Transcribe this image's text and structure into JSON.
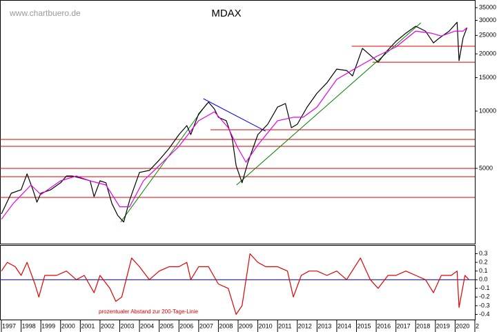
{
  "chart_data": [
    {
      "type": "line",
      "title": "MDAX",
      "watermark": "www.chartbuero.de",
      "log_scale": true,
      "xlim": [
        1996.93,
        2021.0
      ],
      "ylim": [
        2010,
        38400
      ],
      "yticks": [
        5000,
        10000,
        15000,
        20000,
        25000,
        30000,
        35000
      ],
      "series": [
        {
          "color": "#000000",
          "x": [
            1997.0,
            1997.5,
            1998.0,
            1998.3,
            1998.6,
            1998.8,
            1999.0,
            1999.5,
            2000.0,
            2000.3,
            2000.6,
            2001.0,
            2001.5,
            2001.7,
            2002.0,
            2002.3,
            2002.6,
            2002.9,
            2003.2,
            2003.5,
            2004.0,
            2004.5,
            2005.0,
            2005.5,
            2006.0,
            2006.4,
            2006.6,
            2007.0,
            2007.5,
            2007.8,
            2008.0,
            2008.4,
            2008.7,
            2008.9,
            2009.2,
            2009.5,
            2010.0,
            2010.5,
            2011.0,
            2011.4,
            2011.7,
            2012.0,
            2012.5,
            2013.0,
            2013.5,
            2014.0,
            2014.5,
            2014.8,
            2015.3,
            2015.7,
            2016.1,
            2016.5,
            2017.0,
            2017.5,
            2018.0,
            2018.5,
            2018.9,
            2019.2,
            2019.7,
            2020.1,
            2020.2,
            2020.4,
            2020.6
          ],
          "values": [
            2880,
            3700,
            3860,
            4680,
            3860,
            3320,
            3700,
            3860,
            4200,
            4560,
            4560,
            4450,
            4300,
            3550,
            4300,
            4200,
            3270,
            2830,
            2610,
            3400,
            4760,
            4880,
            5530,
            6370,
            7530,
            8390,
            7530,
            9670,
            11150,
            10250,
            9280,
            8900,
            7220,
            5170,
            4200,
            5390,
            7530,
            8530,
            10510,
            10960,
            8180,
            8530,
            10510,
            12430,
            14080,
            16640,
            16360,
            15310,
            21370,
            19660,
            18090,
            20490,
            23250,
            25700,
            27960,
            26350,
            22860,
            24240,
            26350,
            29350,
            18400,
            24240,
            27500
          ]
        },
        {
          "color": "#e000e0",
          "x": [
            1997.0,
            1997.6,
            1998.5,
            1999.0,
            2000.0,
            2000.8,
            2001.5,
            2002.3,
            2003.0,
            2003.5,
            2004.2,
            2005.0,
            2006.0,
            2007.0,
            2007.8,
            2008.5,
            2009.0,
            2009.4,
            2010.0,
            2011.0,
            2011.8,
            2012.3,
            2013.0,
            2014.0,
            2015.0,
            2016.0,
            2017.0,
            2018.0,
            2018.8,
            2019.3,
            2020.0,
            2020.4,
            2020.6
          ],
          "values": [
            2700,
            3270,
            4090,
            3640,
            4300,
            4560,
            4300,
            4090,
            3140,
            3140,
            4300,
            5170,
            6530,
            8900,
            9920,
            8180,
            6370,
            5390,
            6640,
            8900,
            9280,
            9280,
            10510,
            14690,
            16920,
            19350,
            21750,
            26350,
            25700,
            24830,
            26350,
            26350,
            27500
          ]
        }
      ],
      "trendlines": [
        {
          "color": "#008000",
          "x": [
            2003.05,
            2007.42
          ],
          "values": [
            2610,
            10960
          ]
        },
        {
          "color": "#008000",
          "x": [
            2008.92,
            2018.26
          ],
          "values": [
            4090,
            29130
          ]
        },
        {
          "color": "#0000ff",
          "x": [
            2007.24,
            2010.39
          ],
          "values": [
            11620,
            7850
          ]
        }
      ],
      "level_color": "#e00000",
      "levels": [
        {
          "value": 21930,
          "from": 2014.76
        },
        {
          "value": 18090,
          "from": 2015.81
        },
        {
          "value": 7980,
          "from": 2007.6
        },
        {
          "value": 7100
        },
        {
          "value": 6530
        },
        {
          "value": 5000
        },
        {
          "value": 4520
        },
        {
          "value": 3520
        }
      ]
    },
    {
      "type": "line",
      "label": "prozentualer Abstand zur 200-Tage-Linie",
      "xlim": [
        1996.93,
        2021.0
      ],
      "ylim": [
        -0.46,
        0.4
      ],
      "yticks": [
        0.3,
        0.2,
        0.1,
        {
          "value": 0,
          "label": "0.0"
        },
        -0.1,
        -0.2,
        -0.3,
        -0.4
      ],
      "xticks": [
        1997,
        1998,
        1999,
        2000,
        2001,
        2002,
        2003,
        2004,
        2005,
        2006,
        2007,
        2008,
        2009,
        2010,
        2011,
        2012,
        2013,
        2014,
        2015,
        2016,
        2017,
        2018,
        2019,
        2020,
        {
          "value": 2021,
          "label": "2"
        }
      ],
      "zero_line_color": "#000080",
      "series": [
        {
          "color": "#e00000",
          "x": [
            1997.0,
            1997.3,
            1997.7,
            1998.0,
            1998.3,
            1998.7,
            1998.9,
            1999.2,
            1999.8,
            2000.3,
            2000.8,
            2001.2,
            2001.7,
            2002.0,
            2002.5,
            2002.8,
            2003.1,
            2003.6,
            2004.0,
            2004.5,
            2005.0,
            2005.5,
            2006.0,
            2006.4,
            2006.6,
            2007.0,
            2007.5,
            2008.0,
            2008.5,
            2008.9,
            2009.2,
            2009.6,
            2010.0,
            2010.4,
            2011.0,
            2011.5,
            2011.8,
            2012.2,
            2012.6,
            2013.0,
            2013.5,
            2014.0,
            2014.5,
            2015.2,
            2015.7,
            2016.1,
            2016.6,
            2017.0,
            2017.5,
            2018.0,
            2018.5,
            2018.9,
            2019.3,
            2019.8,
            2020.1,
            2020.2,
            2020.5,
            2020.7
          ],
          "values": [
            0.1,
            0.2,
            0.15,
            0.05,
            0.2,
            -0.05,
            -0.2,
            0.05,
            0.05,
            0.1,
            0.0,
            0.05,
            -0.15,
            0.05,
            -0.1,
            -0.25,
            -0.2,
            0.25,
            0.15,
            0.0,
            0.1,
            0.15,
            0.15,
            0.2,
            0.0,
            0.15,
            0.15,
            -0.05,
            -0.1,
            -0.4,
            -0.3,
            0.3,
            0.2,
            0.15,
            0.15,
            0.1,
            -0.2,
            0.05,
            0.1,
            0.1,
            0.05,
            0.1,
            0.0,
            0.25,
            0.0,
            -0.1,
            0.05,
            0.05,
            0.1,
            0.05,
            0.0,
            -0.15,
            0.05,
            0.05,
            0.1,
            -0.32,
            0.05,
            0.0
          ]
        }
      ]
    }
  ]
}
